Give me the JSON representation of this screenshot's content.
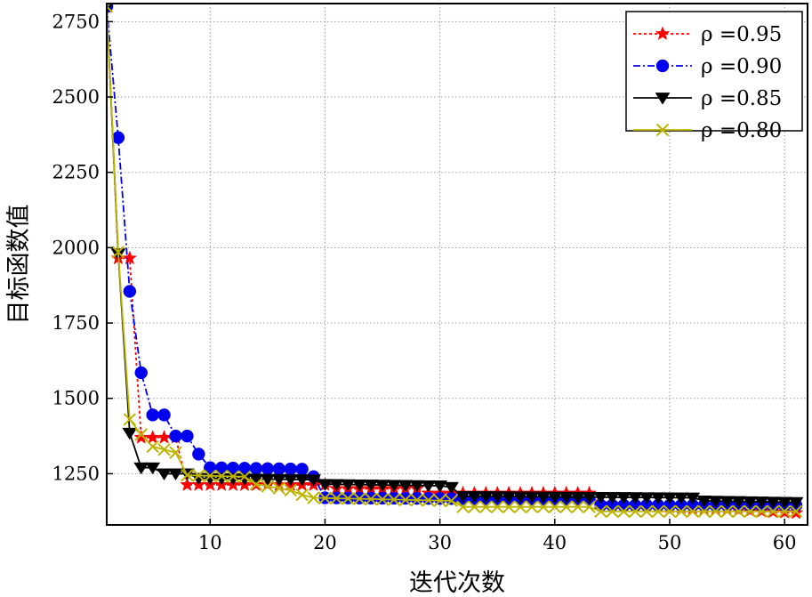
{
  "chart_data": {
    "type": "line",
    "xlabel": "迭代次数",
    "ylabel": "目标函数值",
    "xlim": [
      1,
      62
    ],
    "ylim": [
      1080,
      2810
    ],
    "xticks": [
      10,
      20,
      30,
      40,
      50,
      60
    ],
    "yticks": [
      1250,
      1500,
      1750,
      2000,
      2250,
      2500,
      2750
    ],
    "ytick_labels": [
      "1250",
      "1500",
      "1750",
      "2000",
      "2250",
      "2500",
      "2750"
    ],
    "grid": true,
    "legend_position": "top-right",
    "series": [
      {
        "name": "ρ =0.95",
        "color": "#ff0000",
        "marker": "star",
        "linestyle": "dotted",
        "segments": [
          [
            1,
            2800
          ],
          [
            2,
            1965
          ],
          [
            3,
            1965
          ],
          [
            4,
            1370
          ],
          [
            7,
            1370
          ],
          [
            8,
            1213
          ],
          [
            20,
            1213
          ],
          [
            21,
            1200
          ],
          [
            28,
            1200
          ],
          [
            29,
            1185
          ],
          [
            43,
            1185
          ],
          [
            44,
            1150
          ],
          [
            61,
            1120
          ]
        ]
      },
      {
        "name": "ρ =0.90",
        "color": "#0000ee",
        "marker": "circle",
        "linestyle": "dashdot",
        "segments": [
          [
            1,
            2800
          ],
          [
            2,
            2365
          ],
          [
            3,
            1855
          ],
          [
            4,
            1585
          ],
          [
            5,
            1445
          ],
          [
            6,
            1445
          ],
          [
            7,
            1375
          ],
          [
            8,
            1375
          ],
          [
            9,
            1315
          ],
          [
            10,
            1270
          ],
          [
            18,
            1265
          ],
          [
            19,
            1240
          ],
          [
            20,
            1170
          ],
          [
            43,
            1165
          ],
          [
            44,
            1145
          ],
          [
            61,
            1145
          ]
        ]
      },
      {
        "name": "ρ =0.85",
        "color": "#000000",
        "marker": "triangle-down",
        "linestyle": "solid",
        "segments": [
          [
            1,
            2800
          ],
          [
            2,
            1980
          ],
          [
            3,
            1385
          ],
          [
            4,
            1270
          ],
          [
            5,
            1270
          ],
          [
            6,
            1250
          ],
          [
            8,
            1250
          ],
          [
            9,
            1235
          ],
          [
            19,
            1230
          ],
          [
            20,
            1215
          ],
          [
            30,
            1210
          ],
          [
            31,
            1205
          ],
          [
            32,
            1175
          ],
          [
            52,
            1170
          ],
          [
            53,
            1160
          ],
          [
            61,
            1155
          ]
        ]
      },
      {
        "name": "ρ =0.80",
        "color": "#bdb400",
        "marker": "x",
        "linestyle": "solid",
        "segments": [
          [
            1,
            2800
          ],
          [
            2,
            1985
          ],
          [
            3,
            1430
          ],
          [
            4,
            1380
          ],
          [
            5,
            1340
          ],
          [
            7,
            1320
          ],
          [
            8,
            1245
          ],
          [
            13,
            1240
          ],
          [
            14,
            1215
          ],
          [
            17,
            1195
          ],
          [
            18,
            1180
          ],
          [
            19,
            1170
          ],
          [
            31,
            1160
          ],
          [
            32,
            1140
          ],
          [
            43,
            1140
          ],
          [
            44,
            1125
          ],
          [
            61,
            1125
          ]
        ]
      }
    ]
  }
}
